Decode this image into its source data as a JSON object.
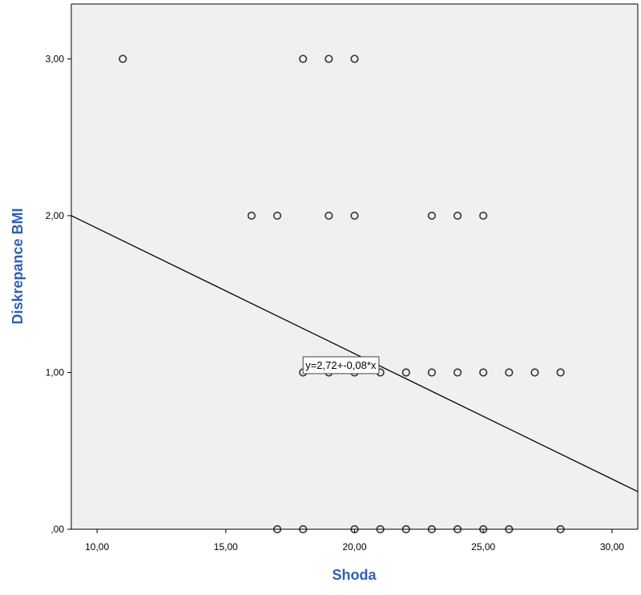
{
  "chart_data": {
    "type": "scatter",
    "xlabel": "Shoda",
    "ylabel": "Diskrepance BMI",
    "xlim": [
      9.0,
      31.0
    ],
    "ylim": [
      0.0,
      3.35
    ],
    "x_ticks": [
      10,
      15,
      20,
      25,
      30
    ],
    "x_tick_labels": [
      "10,00",
      "15,00",
      "20,00",
      "25,00",
      "30,00"
    ],
    "y_ticks": [
      0,
      1,
      2,
      3
    ],
    "y_tick_labels": [
      ",00",
      "1,00",
      "2,00",
      "3,00"
    ],
    "grid": false,
    "colors": {
      "plot_background": "#f0f0f0",
      "axis_title": "#2f5fb3",
      "marker": "#333333",
      "line": "#000000"
    },
    "points": [
      {
        "x": 11,
        "y": 3
      },
      {
        "x": 18,
        "y": 3
      },
      {
        "x": 19,
        "y": 3
      },
      {
        "x": 20,
        "y": 3
      },
      {
        "x": 16,
        "y": 2
      },
      {
        "x": 17,
        "y": 2
      },
      {
        "x": 19,
        "y": 2
      },
      {
        "x": 20,
        "y": 2
      },
      {
        "x": 23,
        "y": 2
      },
      {
        "x": 24,
        "y": 2
      },
      {
        "x": 25,
        "y": 2
      },
      {
        "x": 18,
        "y": 1
      },
      {
        "x": 19,
        "y": 1
      },
      {
        "x": 20,
        "y": 1
      },
      {
        "x": 21,
        "y": 1
      },
      {
        "x": 22,
        "y": 1
      },
      {
        "x": 23,
        "y": 1
      },
      {
        "x": 24,
        "y": 1
      },
      {
        "x": 25,
        "y": 1
      },
      {
        "x": 26,
        "y": 1
      },
      {
        "x": 27,
        "y": 1
      },
      {
        "x": 28,
        "y": 1
      },
      {
        "x": 17,
        "y": 0
      },
      {
        "x": 18,
        "y": 0
      },
      {
        "x": 20,
        "y": 0
      },
      {
        "x": 21,
        "y": 0
      },
      {
        "x": 22,
        "y": 0
      },
      {
        "x": 23,
        "y": 0
      },
      {
        "x": 24,
        "y": 0
      },
      {
        "x": 25,
        "y": 0
      },
      {
        "x": 26,
        "y": 0
      },
      {
        "x": 28,
        "y": 0
      }
    ],
    "fit_line": {
      "intercept": 2.72,
      "slope": -0.08
    },
    "fit_label": "y=2,72+-0,08*x",
    "fit_label_anchor": {
      "x": 18.0,
      "y": 1.1
    }
  }
}
